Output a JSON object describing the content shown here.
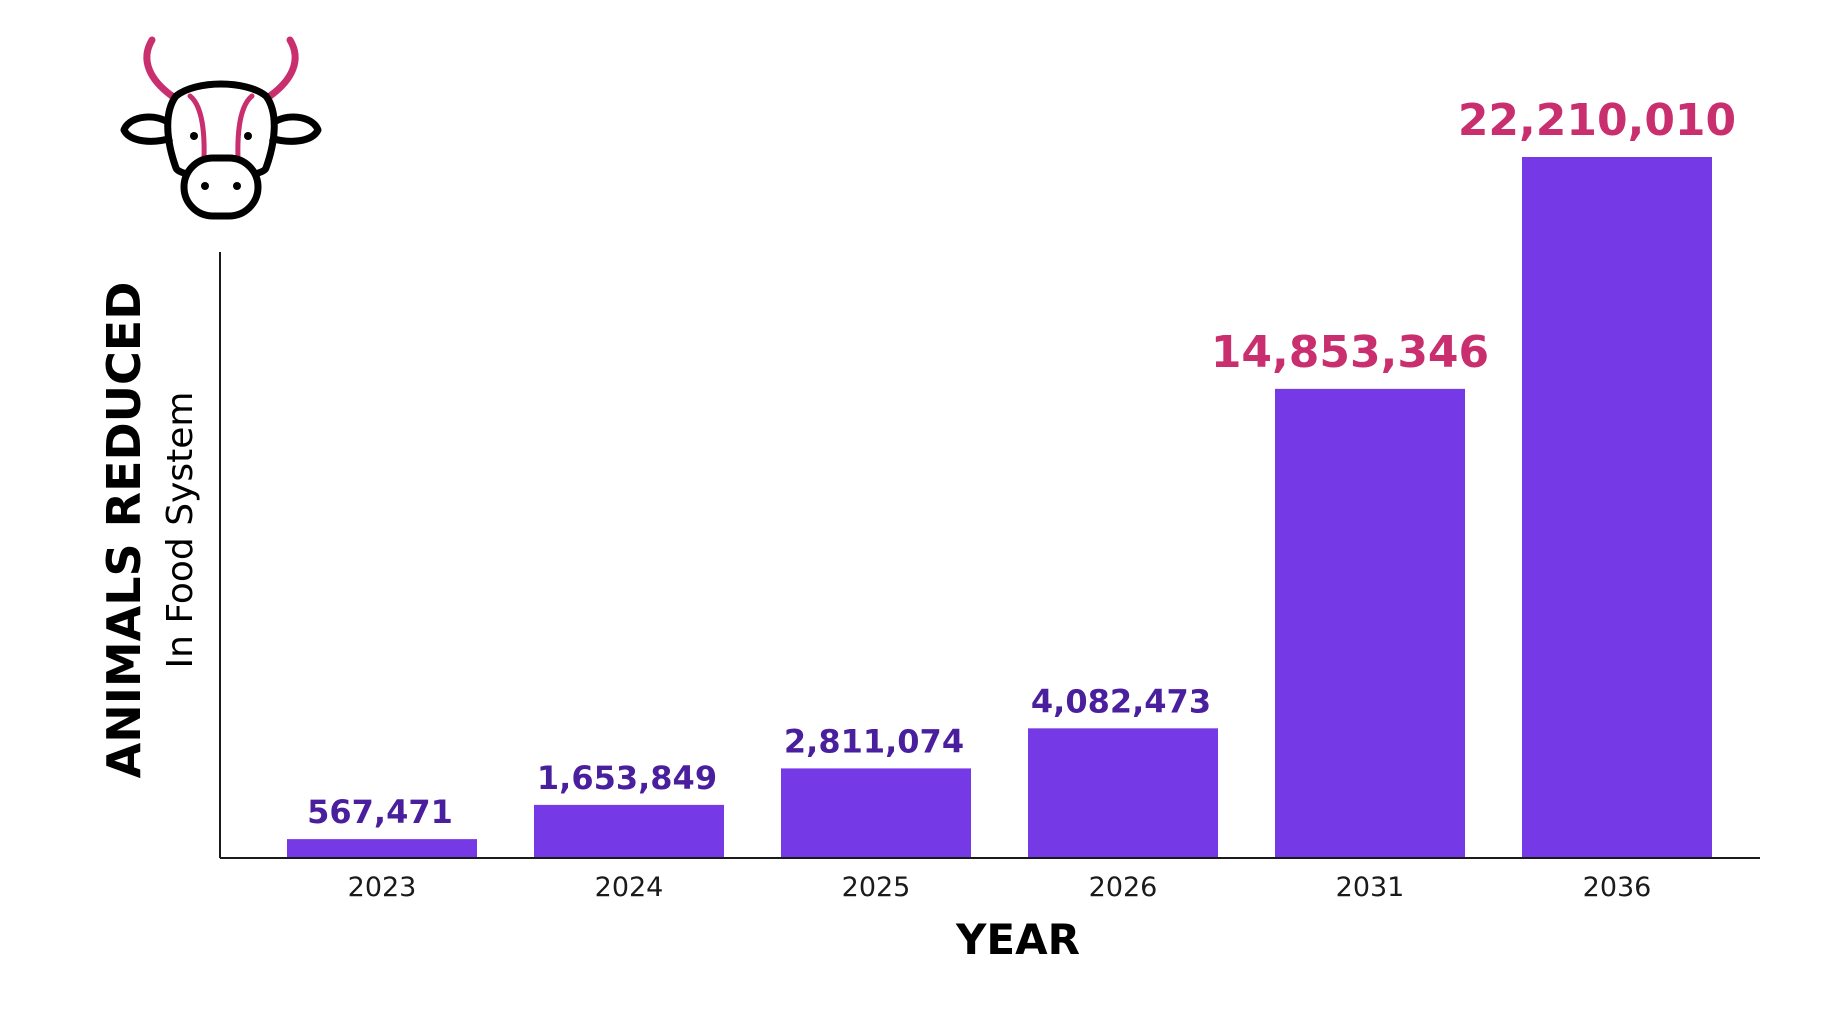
{
  "chart_data": {
    "type": "bar",
    "categories": [
      "2023",
      "2024",
      "2025",
      "2026",
      "2031",
      "2036"
    ],
    "values": [
      567471,
      1653849,
      2811074,
      4082473,
      14853346,
      22210010
    ],
    "value_labels": [
      "567,471",
      "1,653,849",
      "2,811,074",
      "4,082,473",
      "14,853,346",
      "22,210,010"
    ],
    "xlabel": "YEAR",
    "ylabel": "ANIMALS REDUCED",
    "ylabel_sub": "In Food System",
    "ylim": [
      0,
      22210010
    ],
    "grid": false,
    "colors": {
      "bar": "#7539E6",
      "label_small": "#4A1F9E",
      "label_large": "#C92F6E",
      "axis": "#1a1a1a"
    }
  },
  "icon": {
    "name": "cow-head-icon",
    "accent": "#C92F6E"
  }
}
